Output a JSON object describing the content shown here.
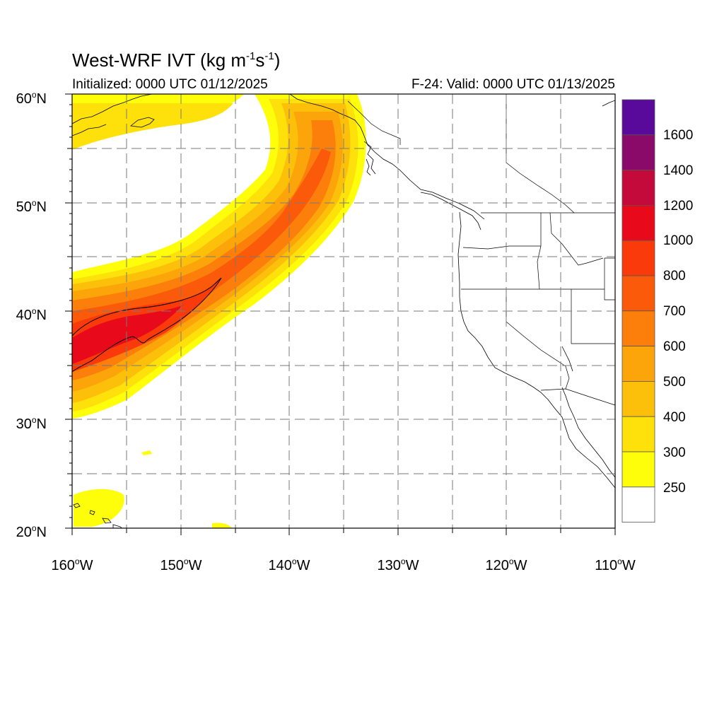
{
  "header": {
    "title_main": "West-WRF IVT (kg m",
    "title_exp1": "-1",
    "title_mid": "s",
    "title_exp2": "-1",
    "title_end": ")",
    "initialized": "Initialized: 0000 UTC 01/12/2025",
    "valid": "F-24: Valid: 0000 UTC 01/13/2025"
  },
  "map": {
    "projection": "cylindrical equidistant",
    "lon_range": [
      -160,
      -110
    ],
    "lat_range": [
      20,
      60
    ],
    "grid_style": "dashed",
    "lat_labels": [
      "20",
      "30",
      "40",
      "50",
      "60"
    ],
    "lat_suffix": "N",
    "lon_labels": [
      "160",
      "150",
      "140",
      "130",
      "120",
      "110"
    ],
    "lon_suffix": "W",
    "degree_symbol": "o",
    "overlay_contour": 1000
  },
  "colorbar": {
    "labels": [
      "1600",
      "1400",
      "1200",
      "1000",
      "800",
      "700",
      "600",
      "500",
      "400",
      "300",
      "250"
    ],
    "colors": [
      "#5a0a9a",
      "#8a0a6a",
      "#c40a3a",
      "#e80a1a",
      "#fa3a0a",
      "#fa5a0a",
      "#fb7f0a",
      "#fca50a",
      "#fdc00a",
      "#fee00a",
      "#fefe0a",
      "#ffffff"
    ]
  }
}
